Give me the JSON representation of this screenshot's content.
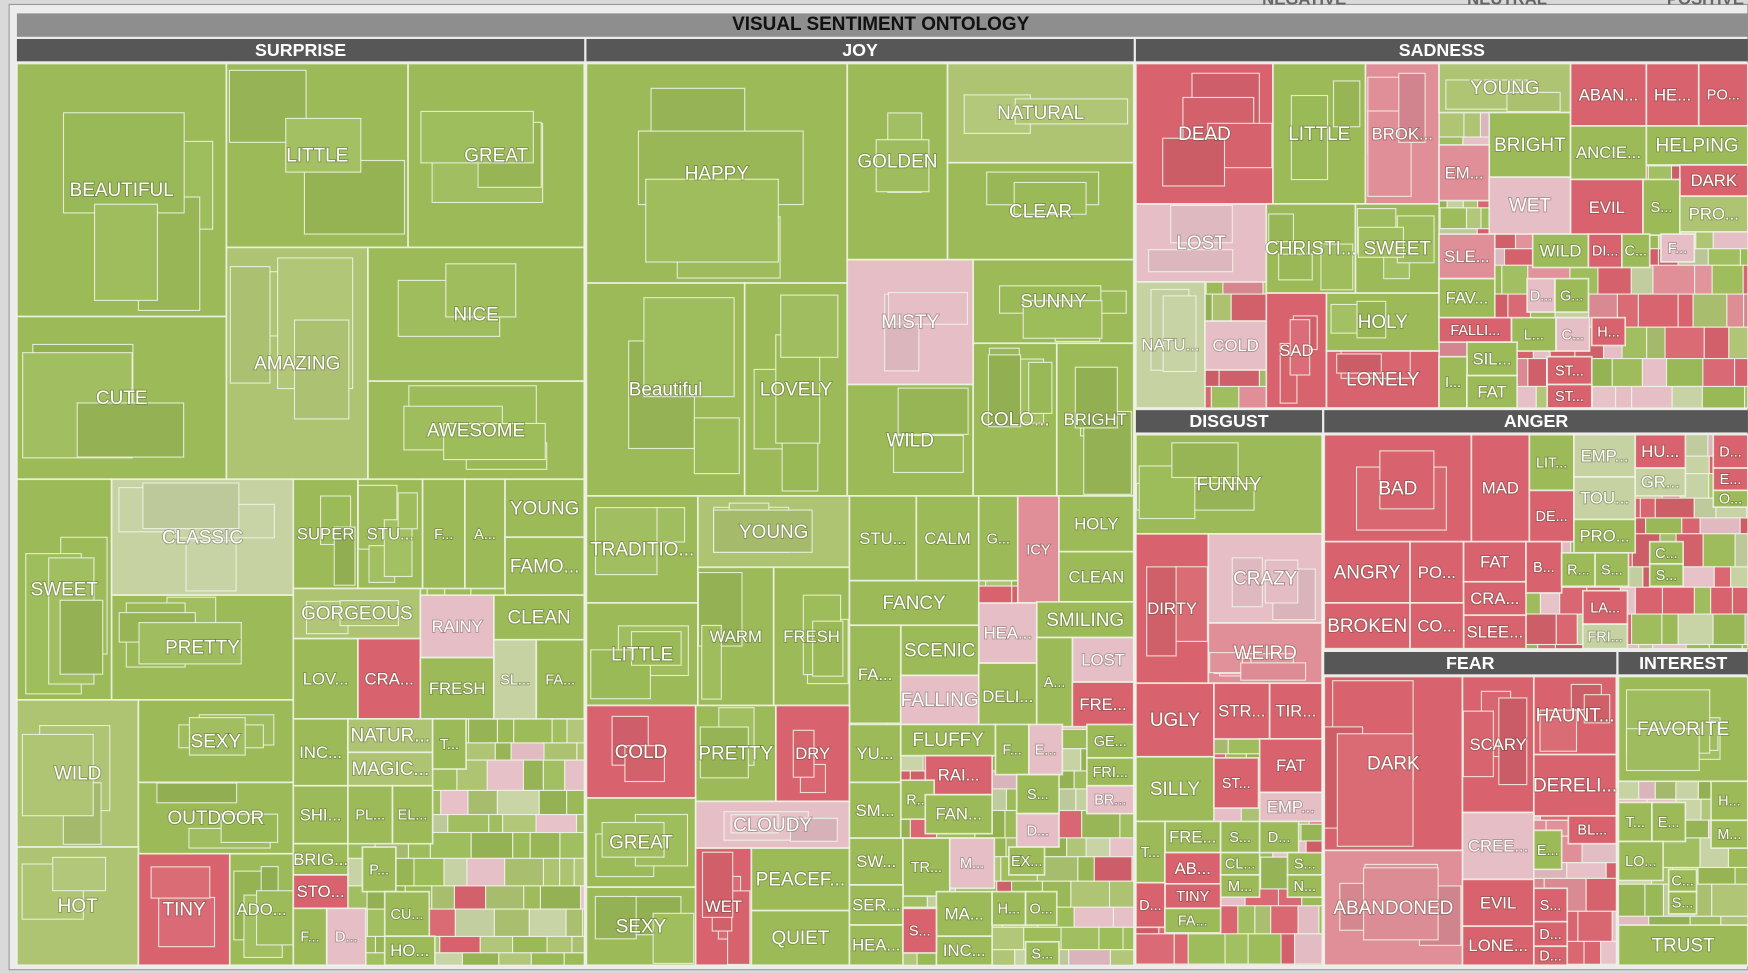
{
  "title": "VISUAL SENTIMENT ONTOLOGY",
  "legend": [
    "NEGATIVE",
    "NEUTRAL",
    "POSITIVE"
  ],
  "groups": [
    {
      "name": "SURPRISE",
      "cells": [
        {
          "label": "BEAUTIFUL",
          "color": "#9cbb58"
        },
        {
          "label": "CUTE",
          "color": "#9cbb58"
        },
        {
          "label": "LITTLE",
          "color": "#9cbb58"
        },
        {
          "label": "GREAT",
          "color": "#9cbb58"
        },
        {
          "label": "AMAZING",
          "color": "#aec472"
        },
        {
          "label": "NICE",
          "color": "#9cbb58"
        },
        {
          "label": "AWESOME",
          "color": "#9cbb58"
        },
        {
          "label": "SWEET",
          "color": "#9cbb58"
        },
        {
          "label": "CLASSIC",
          "color": "#c6d2a2"
        },
        {
          "label": "PRETTY",
          "color": "#9cbb58"
        },
        {
          "label": "WILD",
          "color": "#aec472"
        },
        {
          "label": "SEXY",
          "color": "#9cbb58"
        },
        {
          "label": "OUTDOOR",
          "color": "#9cbb58"
        },
        {
          "label": "HOT",
          "color": "#aec472"
        },
        {
          "label": "TINY",
          "color": "#d8636e"
        },
        {
          "label": "ADO...",
          "color": "#9cbb58"
        },
        {
          "label": "SUPER",
          "color": "#9cbb58"
        },
        {
          "label": "STU...",
          "color": "#9cbb58"
        },
        {
          "label": "F...",
          "color": "#9cbb58"
        },
        {
          "label": "A...",
          "color": "#9cbb58"
        },
        {
          "label": "YOUNG",
          "color": "#9cbb58"
        },
        {
          "label": "FAMO...",
          "color": "#9cbb58"
        },
        {
          "label": "GORGEOUS",
          "color": "#aec472"
        },
        {
          "label": "RAINY",
          "color": "#e6bfc6"
        },
        {
          "label": "CLEAN",
          "color": "#9cbb58"
        },
        {
          "label": "LOV...",
          "color": "#9cbb58"
        },
        {
          "label": "CRA...",
          "color": "#d8636e"
        },
        {
          "label": "FRESH",
          "color": "#9cbb58"
        },
        {
          "label": "SL...",
          "color": "#c6d2a2"
        },
        {
          "label": "FA...",
          "color": "#9cbb58"
        },
        {
          "label": "INC...",
          "color": "#9cbb58"
        },
        {
          "label": "NATUR...",
          "color": "#aec472"
        },
        {
          "label": "MAGIC...",
          "color": "#aec472"
        },
        {
          "label": "T...",
          "color": "#9cbb58"
        },
        {
          "label": "SHI...",
          "color": "#9cbb58"
        },
        {
          "label": "PL...",
          "color": "#9cbb58"
        },
        {
          "label": "EL...",
          "color": "#9cbb58"
        },
        {
          "label": "BRIG...",
          "color": "#9cbb58"
        },
        {
          "label": "STO...",
          "color": "#d8636e"
        },
        {
          "label": "P...",
          "color": "#9cbb58"
        },
        {
          "label": "CU...",
          "color": "#9cbb58"
        },
        {
          "label": "F...",
          "color": "#9cbb58"
        },
        {
          "label": "D...",
          "color": "#e6bfc6"
        },
        {
          "label": "HO...",
          "color": "#9cbb58"
        }
      ]
    },
    {
      "name": "JOY",
      "cells": [
        {
          "label": "HAPPY",
          "color": "#9cbb58"
        },
        {
          "label": "GOLDEN",
          "color": "#9cbb58"
        },
        {
          "label": "NATURAL",
          "color": "#aec472"
        },
        {
          "label": "CLEAR",
          "color": "#9cbb58"
        },
        {
          "label": "Beautiful",
          "color": "#9cbb58"
        },
        {
          "label": "LOVELY",
          "color": "#9cbb58"
        },
        {
          "label": "MISTY",
          "color": "#e6bfc6"
        },
        {
          "label": "SUNNY",
          "color": "#9cbb58"
        },
        {
          "label": "WILD",
          "color": "#9cbb58"
        },
        {
          "label": "COLO...",
          "color": "#9cbb58"
        },
        {
          "label": "BRIGHT",
          "color": "#9cbb58"
        },
        {
          "label": "TRADITIO...",
          "color": "#9cbb58"
        },
        {
          "label": "LITTLE",
          "color": "#9cbb58"
        },
        {
          "label": "YOUNG",
          "color": "#aec472"
        },
        {
          "label": "WARM",
          "color": "#9cbb58"
        },
        {
          "label": "FRESH",
          "color": "#9cbb58"
        },
        {
          "label": "STU...",
          "color": "#9cbb58"
        },
        {
          "label": "CALM",
          "color": "#9cbb58"
        },
        {
          "label": "G...",
          "color": "#9cbb58"
        },
        {
          "label": "ICY",
          "color": "#e08e97"
        },
        {
          "label": "HOLY",
          "color": "#9cbb58"
        },
        {
          "label": "CLEAN",
          "color": "#9cbb58"
        },
        {
          "label": "FANCY",
          "color": "#9cbb58"
        },
        {
          "label": "SMILING",
          "color": "#9cbb58"
        },
        {
          "label": "HEA...",
          "color": "#e6bfc6"
        },
        {
          "label": "SCENIC",
          "color": "#9cbb58"
        },
        {
          "label": "FA...",
          "color": "#9cbb58"
        },
        {
          "label": "LOST",
          "color": "#e6bfc6"
        },
        {
          "label": "FALLING",
          "color": "#e6bfc6"
        },
        {
          "label": "DELI...",
          "color": "#9cbb58"
        },
        {
          "label": "A...",
          "color": "#9cbb58"
        },
        {
          "label": "FRE...",
          "color": "#d8636e"
        },
        {
          "label": "COLD",
          "color": "#d8636e"
        },
        {
          "label": "PRETTY",
          "color": "#9cbb58"
        },
        {
          "label": "DRY",
          "color": "#d8636e"
        },
        {
          "label": "GREAT",
          "color": "#9cbb58"
        },
        {
          "label": "CLOUDY",
          "color": "#e6bfc6"
        },
        {
          "label": "SEXY",
          "color": "#9cbb58"
        },
        {
          "label": "WET",
          "color": "#d8636e"
        },
        {
          "label": "PEACEF...",
          "color": "#9cbb58"
        },
        {
          "label": "QUIET",
          "color": "#9cbb58"
        },
        {
          "label": "YU...",
          "color": "#9cbb58"
        },
        {
          "label": "FLUFFY",
          "color": "#9cbb58"
        },
        {
          "label": "RAI...",
          "color": "#d8636e"
        },
        {
          "label": "F...",
          "color": "#9cbb58"
        },
        {
          "label": "E...",
          "color": "#e6bfc6"
        },
        {
          "label": "GE...",
          "color": "#9cbb58"
        },
        {
          "label": "FRI...",
          "color": "#9cbb58"
        },
        {
          "label": "R...",
          "color": "#9cbb58"
        },
        {
          "label": "SM...",
          "color": "#9cbb58"
        },
        {
          "label": "FAN...",
          "color": "#9cbb58"
        },
        {
          "label": "S...",
          "color": "#9cbb58"
        },
        {
          "label": "BR...",
          "color": "#e6bfc6"
        },
        {
          "label": "D...",
          "color": "#e6bfc6"
        },
        {
          "label": "SW...",
          "color": "#9cbb58"
        },
        {
          "label": "TR...",
          "color": "#9cbb58"
        },
        {
          "label": "M...",
          "color": "#e6bfc6"
        },
        {
          "label": "EX...",
          "color": "#9cbb58"
        },
        {
          "label": "SER...",
          "color": "#9cbb58"
        },
        {
          "label": "MA...",
          "color": "#9cbb58"
        },
        {
          "label": "H...",
          "color": "#9cbb58"
        },
        {
          "label": "O...",
          "color": "#9cbb58"
        },
        {
          "label": "HEA...",
          "color": "#9cbb58"
        },
        {
          "label": "INC...",
          "color": "#9cbb58"
        },
        {
          "label": "S...",
          "color": "#d8636e"
        },
        {
          "label": "S...",
          "color": "#9cbb58"
        }
      ]
    },
    {
      "name": "SADNESS",
      "cells": [
        {
          "label": "DEAD",
          "color": "#d8636e"
        },
        {
          "label": "LITTLE",
          "color": "#9cbb58"
        },
        {
          "label": "BROK...",
          "color": "#e08e97"
        },
        {
          "label": "YOUNG",
          "color": "#aec472"
        },
        {
          "label": "BRIGHT",
          "color": "#9cbb58"
        },
        {
          "label": "EM...",
          "color": "#e08e97"
        },
        {
          "label": "ABAN...",
          "color": "#d8636e"
        },
        {
          "label": "HE...",
          "color": "#d8636e"
        },
        {
          "label": "PO...",
          "color": "#d8636e"
        },
        {
          "label": "ANCIE...",
          "color": "#9cbb58"
        },
        {
          "label": "HELPING",
          "color": "#9cbb58"
        },
        {
          "label": "DARK",
          "color": "#d8636e"
        },
        {
          "label": "WET",
          "color": "#e6bfc6"
        },
        {
          "label": "EVIL",
          "color": "#d8636e"
        },
        {
          "label": "S...",
          "color": "#9cbb58"
        },
        {
          "label": "PRO...",
          "color": "#aec472"
        },
        {
          "label": "LOST",
          "color": "#e6bfc6"
        },
        {
          "label": "CHRISTI...",
          "color": "#9cbb58"
        },
        {
          "label": "SWEET",
          "color": "#9cbb58"
        },
        {
          "label": "SLE...",
          "color": "#e08e97"
        },
        {
          "label": "WILD",
          "color": "#9cbb58"
        },
        {
          "label": "DI...",
          "color": "#d8636e"
        },
        {
          "label": "C...",
          "color": "#9cbb58"
        },
        {
          "label": "F...",
          "color": "#e6bfc6"
        },
        {
          "label": "NATU...",
          "color": "#c6d2a2"
        },
        {
          "label": "COLD",
          "color": "#e6bfc6"
        },
        {
          "label": "SAD",
          "color": "#d8636e"
        },
        {
          "label": "HOLY",
          "color": "#9cbb58"
        },
        {
          "label": "LONELY",
          "color": "#d8636e"
        },
        {
          "label": "FAV...",
          "color": "#9cbb58"
        },
        {
          "label": "D...",
          "color": "#e6bfc6"
        },
        {
          "label": "G...",
          "color": "#9cbb58"
        },
        {
          "label": "FALLI...",
          "color": "#d8636e"
        },
        {
          "label": "L...",
          "color": "#9cbb58"
        },
        {
          "label": "C...",
          "color": "#e6bfc6"
        },
        {
          "label": "SIL...",
          "color": "#9cbb58"
        },
        {
          "label": "I...",
          "color": "#9cbb58"
        },
        {
          "label": "FAT",
          "color": "#9cbb58"
        },
        {
          "label": "ST...",
          "color": "#d8636e"
        },
        {
          "label": "ST...",
          "color": "#d8636e"
        },
        {
          "label": "H...",
          "color": "#d8636e"
        }
      ]
    },
    {
      "name": "DISGUST",
      "cells": [
        {
          "label": "FUNNY",
          "color": "#9cbb58"
        },
        {
          "label": "DIRTY",
          "color": "#d8636e"
        },
        {
          "label": "CRAZY",
          "color": "#e6bfc6"
        },
        {
          "label": "WEIRD",
          "color": "#e08e97"
        },
        {
          "label": "UGLY",
          "color": "#d8636e"
        },
        {
          "label": "STR...",
          "color": "#d8636e"
        },
        {
          "label": "TIR...",
          "color": "#d8636e"
        },
        {
          "label": "SILLY",
          "color": "#9cbb58"
        },
        {
          "label": "FAT",
          "color": "#d8636e"
        },
        {
          "label": "ST...",
          "color": "#d8636e"
        },
        {
          "label": "EMP...",
          "color": "#e6bfc6"
        },
        {
          "label": "FRE...",
          "color": "#9cbb58"
        },
        {
          "label": "S...",
          "color": "#9cbb58"
        },
        {
          "label": "D...",
          "color": "#9cbb58"
        },
        {
          "label": "T...",
          "color": "#9cbb58"
        },
        {
          "label": "AB...",
          "color": "#d8636e"
        },
        {
          "label": "CL...",
          "color": "#9cbb58"
        },
        {
          "label": "S...",
          "color": "#9cbb58"
        },
        {
          "label": "M...",
          "color": "#9cbb58"
        },
        {
          "label": "TINY",
          "color": "#d8636e"
        },
        {
          "label": "D...",
          "color": "#d8636e"
        },
        {
          "label": "FA...",
          "color": "#9cbb58"
        },
        {
          "label": "N...",
          "color": "#9cbb58"
        }
      ]
    },
    {
      "name": "ANGER",
      "cells": [
        {
          "label": "BAD",
          "color": "#d8636e"
        },
        {
          "label": "MAD",
          "color": "#d8636e"
        },
        {
          "label": "LIT...",
          "color": "#9cbb58"
        },
        {
          "label": "DE...",
          "color": "#d8636e"
        },
        {
          "label": "EMP...",
          "color": "#c6d2a2"
        },
        {
          "label": "TOU...",
          "color": "#c6d2a2"
        },
        {
          "label": "PRO...",
          "color": "#9cbb58"
        },
        {
          "label": "HU...",
          "color": "#d8636e"
        },
        {
          "label": "GR...",
          "color": "#c6d2a2"
        },
        {
          "label": "D...",
          "color": "#d8636e"
        },
        {
          "label": "E...",
          "color": "#d8636e"
        },
        {
          "label": "O...",
          "color": "#9cbb58"
        },
        {
          "label": "ANGRY",
          "color": "#d8636e"
        },
        {
          "label": "PO...",
          "color": "#d8636e"
        },
        {
          "label": "FAT",
          "color": "#d8636e"
        },
        {
          "label": "CRA...",
          "color": "#d8636e"
        },
        {
          "label": "SLEE...",
          "color": "#d8636e"
        },
        {
          "label": "B...",
          "color": "#d8636e"
        },
        {
          "label": "R...",
          "color": "#9cbb58"
        },
        {
          "label": "S...",
          "color": "#9cbb58"
        },
        {
          "label": "BROKEN",
          "color": "#d8636e"
        },
        {
          "label": "CO...",
          "color": "#d8636e"
        },
        {
          "label": "LA...",
          "color": "#d8636e"
        },
        {
          "label": "FRI...",
          "color": "#c6d2a2"
        },
        {
          "label": "C...",
          "color": "#9cbb58"
        },
        {
          "label": "S...",
          "color": "#9cbb58"
        }
      ]
    },
    {
      "name": "FEAR",
      "cells": [
        {
          "label": "DARK",
          "color": "#d8636e"
        },
        {
          "label": "SCARY",
          "color": "#d8636e"
        },
        {
          "label": "HAUNT...",
          "color": "#d8636e"
        },
        {
          "label": "DERELI...",
          "color": "#d8636e"
        },
        {
          "label": "BL...",
          "color": "#d8636e"
        },
        {
          "label": "CREE...",
          "color": "#e6bfc6"
        },
        {
          "label": "E...",
          "color": "#9cbb58"
        },
        {
          "label": "ABANDONED",
          "color": "#e08e97"
        },
        {
          "label": "EVIL",
          "color": "#d8636e"
        },
        {
          "label": "LONE...",
          "color": "#d8636e"
        },
        {
          "label": "S...",
          "color": "#d8636e"
        },
        {
          "label": "D...",
          "color": "#d8636e"
        },
        {
          "label": "D...",
          "color": "#d8636e"
        }
      ]
    },
    {
      "name": "INTEREST",
      "cells": [
        {
          "label": "FAVORITE",
          "color": "#9cbb58"
        },
        {
          "label": "H...",
          "color": "#9cbb58"
        },
        {
          "label": "T...",
          "color": "#9cbb58"
        },
        {
          "label": "E...",
          "color": "#9cbb58"
        },
        {
          "label": "M...",
          "color": "#9cbb58"
        },
        {
          "label": "LO...",
          "color": "#9cbb58"
        },
        {
          "label": "C...",
          "color": "#9cbb58"
        },
        {
          "label": "S...",
          "color": "#9cbb58"
        },
        {
          "label": "TRUST",
          "color": "#9cbb58"
        }
      ]
    }
  ]
}
